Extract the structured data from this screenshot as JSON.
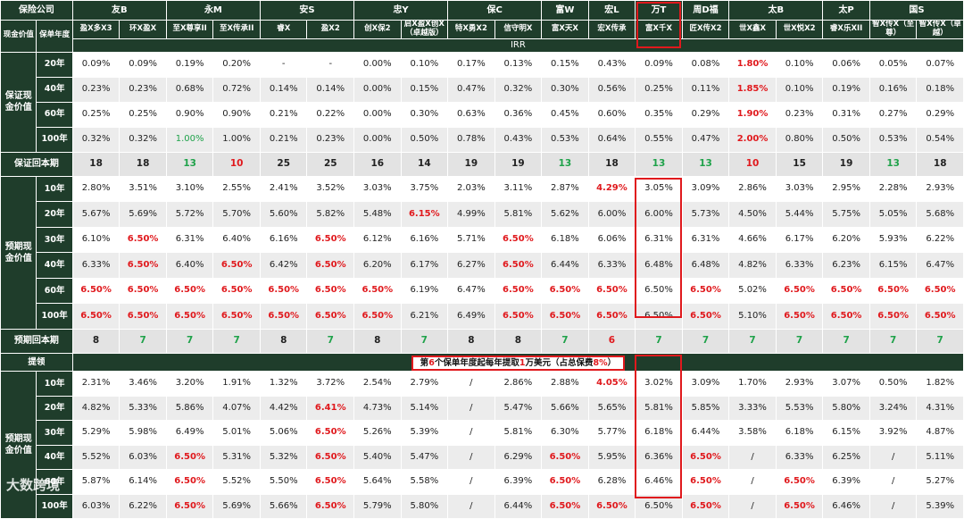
{
  "header": {
    "company_label": "保险公司",
    "companies": [
      "友B",
      "永M",
      "安S",
      "忠Y",
      "保C",
      "富W",
      "宏L",
      "万T",
      "周D福",
      "太B",
      "太P",
      "国S"
    ],
    "col_a_label": "现金价值",
    "col_b_label": "保单年度",
    "products": [
      "盈X多X3",
      "环X盈X",
      "至X尊享II",
      "至X传承II",
      "睿X",
      "盈X2",
      "创X保2",
      "启X盈X创X（卓越版）",
      "特X勇X2",
      "信守明X",
      "富X天X",
      "宏X传承",
      "富X千X",
      "匠X传X2",
      "世X鑫X",
      "世X悦X2",
      "睿X乐XII",
      "智X传X（至尊）",
      "智X传X（卓越）"
    ],
    "irr_label": "IRR"
  },
  "guaranteed": {
    "label": "保证现金价值",
    "rows": [
      {
        "year": "20年",
        "values": [
          "0.09%",
          "0.09%",
          "0.19%",
          "0.20%",
          "-",
          "-",
          "0.00%",
          "0.10%",
          "0.17%",
          "0.13%",
          "0.15%",
          "0.43%",
          "0.09%",
          "0.08%",
          "1.80%",
          "0.10%",
          "0.06%",
          "0.05%",
          "0.07%"
        ]
      },
      {
        "year": "40年",
        "values": [
          "0.23%",
          "0.23%",
          "0.68%",
          "0.72%",
          "0.14%",
          "0.14%",
          "0.00%",
          "0.15%",
          "0.47%",
          "0.32%",
          "0.30%",
          "0.56%",
          "0.25%",
          "0.11%",
          "1.85%",
          "0.10%",
          "0.19%",
          "0.16%",
          "0.18%"
        ]
      },
      {
        "year": "60年",
        "values": [
          "0.25%",
          "0.25%",
          "0.90%",
          "0.90%",
          "0.21%",
          "0.22%",
          "0.00%",
          "0.30%",
          "0.63%",
          "0.36%",
          "0.45%",
          "0.60%",
          "0.35%",
          "0.29%",
          "1.90%",
          "0.23%",
          "0.31%",
          "0.27%",
          "0.29%"
        ]
      },
      {
        "year": "100年",
        "values": [
          "0.32%",
          "0.32%",
          "1.00%",
          "1.00%",
          "0.21%",
          "0.23%",
          "0.00%",
          "0.50%",
          "0.78%",
          "0.43%",
          "0.53%",
          "0.64%",
          "0.55%",
          "0.47%",
          "2.00%",
          "0.80%",
          "0.50%",
          "0.53%",
          "0.54%"
        ]
      }
    ]
  },
  "guaranteed_payback": {
    "label": "保证回本期",
    "values": [
      "18",
      "18",
      "13",
      "10",
      "25",
      "25",
      "16",
      "14",
      "19",
      "19",
      "13",
      "18",
      "13",
      "13",
      "10",
      "15",
      "19",
      "13",
      "18"
    ]
  },
  "expected": {
    "label": "预期现金价值",
    "rows": [
      {
        "year": "10年",
        "values": [
          "2.80%",
          "3.51%",
          "3.10%",
          "2.55%",
          "2.41%",
          "3.52%",
          "3.03%",
          "3.75%",
          "2.03%",
          "3.11%",
          "2.87%",
          "4.29%",
          "3.05%",
          "3.09%",
          "2.86%",
          "3.03%",
          "2.95%",
          "2.28%",
          "2.93%"
        ]
      },
      {
        "year": "20年",
        "values": [
          "5.67%",
          "5.69%",
          "5.72%",
          "5.70%",
          "5.60%",
          "5.82%",
          "5.48%",
          "6.15%",
          "4.99%",
          "5.81%",
          "5.62%",
          "6.00%",
          "6.00%",
          "5.73%",
          "4.50%",
          "5.44%",
          "5.75%",
          "5.05%",
          "5.68%"
        ]
      },
      {
        "year": "30年",
        "values": [
          "6.10%",
          "6.50%",
          "6.31%",
          "6.40%",
          "6.16%",
          "6.50%",
          "6.12%",
          "6.16%",
          "5.71%",
          "6.50%",
          "6.18%",
          "6.06%",
          "6.31%",
          "6.31%",
          "4.66%",
          "6.17%",
          "6.20%",
          "5.93%",
          "6.22%"
        ]
      },
      {
        "year": "40年",
        "values": [
          "6.33%",
          "6.50%",
          "6.40%",
          "6.50%",
          "6.42%",
          "6.50%",
          "6.20%",
          "6.17%",
          "6.27%",
          "6.50%",
          "6.44%",
          "6.33%",
          "6.48%",
          "6.48%",
          "4.82%",
          "6.33%",
          "6.23%",
          "6.15%",
          "6.47%"
        ]
      },
      {
        "year": "60年",
        "values": [
          "6.50%",
          "6.50%",
          "6.50%",
          "6.50%",
          "6.50%",
          "6.50%",
          "6.50%",
          "6.19%",
          "6.47%",
          "6.50%",
          "6.50%",
          "6.50%",
          "6.50%",
          "6.50%",
          "5.02%",
          "6.50%",
          "6.50%",
          "6.50%",
          "6.50%"
        ]
      },
      {
        "year": "100年",
        "values": [
          "6.50%",
          "6.50%",
          "6.50%",
          "6.50%",
          "6.50%",
          "6.50%",
          "6.50%",
          "6.21%",
          "6.49%",
          "6.50%",
          "6.50%",
          "6.50%",
          "6.50%",
          "6.50%",
          "5.10%",
          "6.50%",
          "6.50%",
          "6.50%",
          "6.50%"
        ]
      }
    ]
  },
  "expected_payback": {
    "label": "预期回本期",
    "values": [
      "8",
      "7",
      "7",
      "7",
      "8",
      "7",
      "8",
      "7",
      "8",
      "8",
      "7",
      "6",
      "7",
      "7",
      "7",
      "7",
      "7",
      "7",
      "7"
    ]
  },
  "withdraw": {
    "label": "提领",
    "banner_a": "第",
    "banner_num1": "6",
    "banner_b": "个保单年度起每年提取",
    "banner_num2": "1",
    "banner_c": "万美元（占总保费",
    "banner_pct": "8%",
    "banner_d": "）",
    "section_label": "预期现金价值",
    "rows": [
      {
        "year": "10年",
        "values": [
          "2.31%",
          "3.46%",
          "3.20%",
          "1.91%",
          "1.32%",
          "3.72%",
          "2.54%",
          "2.79%",
          "/",
          "2.86%",
          "2.88%",
          "4.05%",
          "3.02%",
          "3.09%",
          "1.70%",
          "2.93%",
          "3.07%",
          "0.50%",
          "1.82%"
        ]
      },
      {
        "year": "20年",
        "values": [
          "4.82%",
          "5.33%",
          "5.86%",
          "4.07%",
          "4.42%",
          "6.41%",
          "4.73%",
          "5.14%",
          "/",
          "5.47%",
          "5.66%",
          "5.65%",
          "5.81%",
          "5.85%",
          "3.33%",
          "5.53%",
          "5.80%",
          "3.24%",
          "4.31%"
        ]
      },
      {
        "year": "30年",
        "values": [
          "5.29%",
          "5.98%",
          "6.49%",
          "5.01%",
          "5.06%",
          "6.50%",
          "5.26%",
          "5.39%",
          "/",
          "5.81%",
          "6.30%",
          "5.77%",
          "6.18%",
          "6.44%",
          "3.58%",
          "6.18%",
          "6.15%",
          "3.92%",
          "4.87%"
        ]
      },
      {
        "year": "40年",
        "values": [
          "5.52%",
          "6.03%",
          "6.50%",
          "5.31%",
          "5.32%",
          "6.50%",
          "5.40%",
          "5.47%",
          "/",
          "6.29%",
          "6.50%",
          "5.95%",
          "6.36%",
          "6.50%",
          "/",
          "6.33%",
          "6.25%",
          "/",
          "5.11%"
        ]
      },
      {
        "year": "60年",
        "values": [
          "5.87%",
          "6.14%",
          "6.50%",
          "5.52%",
          "5.50%",
          "6.50%",
          "5.64%",
          "5.58%",
          "/",
          "6.39%",
          "6.50%",
          "6.28%",
          "6.46%",
          "6.50%",
          "/",
          "6.50%",
          "6.39%",
          "/",
          "5.27%"
        ]
      },
      {
        "year": "100年",
        "values": [
          "6.03%",
          "6.22%",
          "6.50%",
          "5.69%",
          "5.66%",
          "6.50%",
          "5.79%",
          "5.80%",
          "/",
          "6.44%",
          "6.50%",
          "6.50%",
          "6.50%",
          "6.50%",
          "/",
          "6.50%",
          "6.46%",
          "/",
          "5.39%"
        ]
      }
    ]
  },
  "watermark": "大数跨境",
  "colors": {
    "header_bg": "#1f3d2b",
    "highlight": "#e0191d",
    "good": "#1fa24a",
    "row_alt": "#ececec"
  }
}
